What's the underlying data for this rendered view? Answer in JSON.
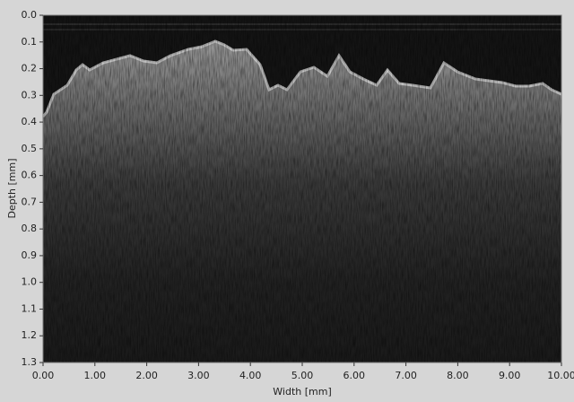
{
  "chart_data": {
    "type": "image",
    "x_label": "Width [mm]",
    "y_label": "Depth [mm]",
    "xlim": [
      0,
      10
    ],
    "ylim": [
      0,
      1.3
    ],
    "xticks": [
      {
        "value": 0,
        "label": "0.00"
      },
      {
        "value": 1,
        "label": "1.00"
      },
      {
        "value": 2,
        "label": "2.00"
      },
      {
        "value": 3,
        "label": "3.00"
      },
      {
        "value": 4,
        "label": "4.00"
      },
      {
        "value": 5,
        "label": "5.00"
      },
      {
        "value": 6,
        "label": "6.00"
      },
      {
        "value": 7,
        "label": "7.00"
      },
      {
        "value": 8,
        "label": "8.00"
      },
      {
        "value": 9,
        "label": "9.00"
      },
      {
        "value": 10,
        "label": "10.00"
      }
    ],
    "yticks": [
      {
        "value": 0,
        "label": "0.0"
      },
      0.1,
      0.2,
      0.3,
      0.4,
      0.5,
      0.6,
      0.7,
      0.8,
      0.9,
      {
        "value": 1,
        "label": "1.0"
      },
      1.1,
      1.2,
      1.3
    ]
  }
}
